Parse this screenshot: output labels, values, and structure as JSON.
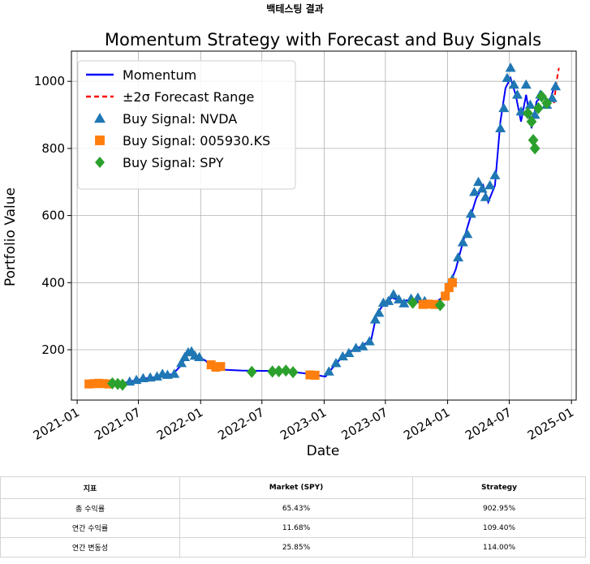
{
  "page_title": "백테스팅 결과",
  "chart_data": {
    "type": "line",
    "title": "Momentum Strategy with Forecast and Buy Signals",
    "xlabel": "Date",
    "ylabel": "Portfolio Value",
    "x_ticks": [
      "2021-01",
      "2021-07",
      "2022-01",
      "2022-07",
      "2023-01",
      "2023-07",
      "2024-01",
      "2024-07",
      "2025-01"
    ],
    "y_ticks": [
      200,
      400,
      600,
      800,
      1000
    ],
    "xlim": [
      "2020-12-15",
      "2025-01-15"
    ],
    "ylim": [
      50,
      1090
    ],
    "grid": true,
    "legend_position": "top-left",
    "legend": [
      "Momentum",
      "±2σ Forecast Range",
      "Buy Signal: NVDA",
      "Buy Signal: 005930.KS",
      "Buy Signal: SPY"
    ],
    "colors": {
      "momentum": "#0000ff",
      "forecast": "#ff0000",
      "nvda": "#1f77b4",
      "samsung": "#ff7f0e",
      "spy": "#2ca02c"
    },
    "series": [
      {
        "name": "Momentum",
        "style": "line",
        "points": [
          [
            "2021-02-01",
            100
          ],
          [
            "2021-03-01",
            99
          ],
          [
            "2021-04-01",
            98
          ],
          [
            "2021-05-01",
            96
          ],
          [
            "2021-05-20",
            101
          ],
          [
            "2021-06-10",
            106
          ],
          [
            "2021-07-01",
            111
          ],
          [
            "2021-07-25",
            115
          ],
          [
            "2021-08-20",
            118
          ],
          [
            "2021-09-15",
            124
          ],
          [
            "2021-10-10",
            127
          ],
          [
            "2021-11-01",
            150
          ],
          [
            "2021-11-20",
            181
          ],
          [
            "2021-12-05",
            192
          ],
          [
            "2021-12-25",
            178
          ],
          [
            "2022-01-15",
            168
          ],
          [
            "2022-02-01",
            150
          ],
          [
            "2022-03-01",
            141
          ],
          [
            "2022-05-01",
            138
          ],
          [
            "2022-07-01",
            137
          ],
          [
            "2022-09-01",
            137
          ],
          [
            "2022-11-01",
            130
          ],
          [
            "2022-12-10",
            124
          ],
          [
            "2023-01-05",
            120
          ],
          [
            "2023-01-25",
            145
          ],
          [
            "2023-02-20",
            175
          ],
          [
            "2023-03-20",
            195
          ],
          [
            "2023-04-20",
            210
          ],
          [
            "2023-05-20",
            230
          ],
          [
            "2023-06-05",
            305
          ],
          [
            "2023-06-25",
            335
          ],
          [
            "2023-07-20",
            355
          ],
          [
            "2023-08-20",
            345
          ],
          [
            "2023-09-20",
            350
          ],
          [
            "2023-10-20",
            335
          ],
          [
            "2023-11-25",
            340
          ],
          [
            "2023-12-15",
            355
          ],
          [
            "2024-01-05",
            390
          ],
          [
            "2024-01-25",
            440
          ],
          [
            "2024-02-15",
            520
          ],
          [
            "2024-03-10",
            600
          ],
          [
            "2024-03-25",
            650
          ],
          [
            "2024-04-15",
            690
          ],
          [
            "2024-04-30",
            640
          ],
          [
            "2024-05-20",
            690
          ],
          [
            "2024-06-05",
            880
          ],
          [
            "2024-06-20",
            980
          ],
          [
            "2024-07-05",
            1010
          ],
          [
            "2024-07-20",
            960
          ],
          [
            "2024-08-05",
            880
          ],
          [
            "2024-08-20",
            960
          ],
          [
            "2024-09-05",
            860
          ],
          [
            "2024-09-20",
            940
          ],
          [
            "2024-10-10",
            960
          ],
          [
            "2024-10-25",
            930
          ],
          [
            "2024-11-10",
            980
          ]
        ]
      },
      {
        "name": "±2σ Forecast Range",
        "style": "dashed",
        "points": [
          [
            "2024-11-10",
            935
          ],
          [
            "2024-11-18",
            1000
          ],
          [
            "2024-11-25",
            1040
          ]
        ]
      },
      {
        "name": "Buy Signal: NVDA",
        "style": "triangle",
        "points": [
          [
            "2021-06-05",
            105
          ],
          [
            "2021-06-25",
            110
          ],
          [
            "2021-07-15",
            115
          ],
          [
            "2021-08-05",
            117
          ],
          [
            "2021-08-25",
            120
          ],
          [
            "2021-09-10",
            128
          ],
          [
            "2021-09-25",
            125
          ],
          [
            "2021-10-15",
            128
          ],
          [
            "2021-11-05",
            160
          ],
          [
            "2021-11-15",
            178
          ],
          [
            "2021-11-25",
            192
          ],
          [
            "2021-12-05",
            195
          ],
          [
            "2021-12-15",
            182
          ],
          [
            "2021-12-28",
            178
          ],
          [
            "2023-01-15",
            135
          ],
          [
            "2023-02-05",
            160
          ],
          [
            "2023-02-25",
            180
          ],
          [
            "2023-03-15",
            190
          ],
          [
            "2023-04-05",
            205
          ],
          [
            "2023-04-25",
            210
          ],
          [
            "2023-05-15",
            225
          ],
          [
            "2023-06-01",
            290
          ],
          [
            "2023-06-12",
            310
          ],
          [
            "2023-06-25",
            340
          ],
          [
            "2023-07-10",
            345
          ],
          [
            "2023-07-25",
            365
          ],
          [
            "2023-08-10",
            350
          ],
          [
            "2023-08-25",
            338
          ],
          [
            "2023-09-15",
            352
          ],
          [
            "2023-10-05",
            355
          ],
          [
            "2023-10-25",
            345
          ],
          [
            "2024-01-15",
            410
          ],
          [
            "2024-02-01",
            475
          ],
          [
            "2024-02-15",
            520
          ],
          [
            "2024-02-28",
            545
          ],
          [
            "2024-03-10",
            605
          ],
          [
            "2024-03-20",
            670
          ],
          [
            "2024-04-01",
            700
          ],
          [
            "2024-04-12",
            680
          ],
          [
            "2024-04-22",
            655
          ],
          [
            "2024-05-05",
            690
          ],
          [
            "2024-05-20",
            720
          ],
          [
            "2024-06-05",
            860
          ],
          [
            "2024-06-15",
            920
          ],
          [
            "2024-06-25",
            1010
          ],
          [
            "2024-07-05",
            1040
          ],
          [
            "2024-07-15",
            990
          ],
          [
            "2024-07-25",
            960
          ],
          [
            "2024-08-05",
            910
          ],
          [
            "2024-08-20",
            990
          ],
          [
            "2024-09-01",
            930
          ],
          [
            "2024-09-15",
            900
          ],
          [
            "2024-10-01",
            960
          ],
          [
            "2024-10-20",
            930
          ],
          [
            "2024-11-05",
            950
          ],
          [
            "2024-11-15",
            985
          ]
        ]
      },
      {
        "name": "Buy Signal: 005930.KS",
        "style": "square",
        "points": [
          [
            "2021-02-05",
            98
          ],
          [
            "2021-02-20",
            99
          ],
          [
            "2021-03-05",
            100
          ],
          [
            "2021-03-20",
            99
          ],
          [
            "2021-04-05",
            98
          ],
          [
            "2022-02-01",
            155
          ],
          [
            "2022-02-15",
            148
          ],
          [
            "2022-03-01",
            150
          ],
          [
            "2022-11-20",
            125
          ],
          [
            "2022-12-05",
            124
          ],
          [
            "2023-10-20",
            335
          ],
          [
            "2023-11-05",
            336
          ],
          [
            "2023-11-25",
            335
          ],
          [
            "2023-12-25",
            360
          ],
          [
            "2024-01-05",
            385
          ],
          [
            "2024-01-15",
            400
          ]
        ]
      },
      {
        "name": "Buy Signal: SPY",
        "style": "diamond",
        "points": [
          [
            "2021-04-15",
            100
          ],
          [
            "2021-05-01",
            98
          ],
          [
            "2021-05-15",
            96
          ],
          [
            "2022-06-01",
            134
          ],
          [
            "2022-08-01",
            135
          ],
          [
            "2022-08-20",
            136
          ],
          [
            "2022-09-10",
            138
          ],
          [
            "2022-10-01",
            133
          ],
          [
            "2023-09-20",
            340
          ],
          [
            "2023-12-10",
            333
          ],
          [
            "2024-08-25",
            905
          ],
          [
            "2024-09-05",
            880
          ],
          [
            "2024-09-10",
            825
          ],
          [
            "2024-09-15",
            800
          ],
          [
            "2024-09-25",
            920
          ],
          [
            "2024-10-05",
            955
          ],
          [
            "2024-10-20",
            935
          ]
        ]
      }
    ]
  },
  "table": {
    "headers": [
      "지표",
      "Market (SPY)",
      "Strategy"
    ],
    "rows": [
      [
        "총 수익률",
        "65.43%",
        "902.95%"
      ],
      [
        "연간 수익률",
        "11.68%",
        "109.40%"
      ],
      [
        "연간 변동성",
        "25.85%",
        "114.00%"
      ]
    ]
  }
}
